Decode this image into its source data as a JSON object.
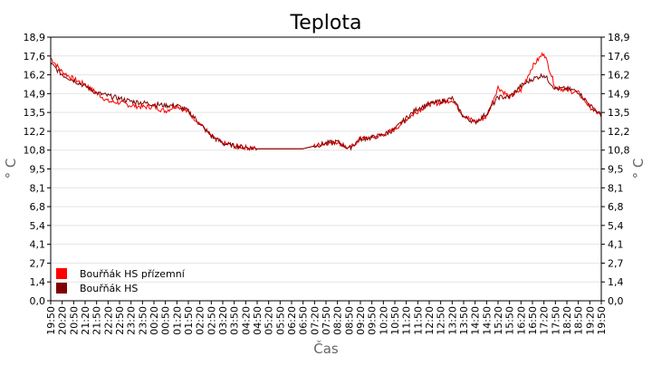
{
  "chart_data": {
    "type": "line",
    "title": "Teplota",
    "xlabel": "Čas",
    "ylabel": "° C",
    "ylim": [
      0,
      18.9
    ],
    "y_ticks": [
      "0,0",
      "1,4",
      "2,7",
      "4,1",
      "5,4",
      "6,8",
      "8,1",
      "9,5",
      "10,8",
      "12,2",
      "13,5",
      "14,9",
      "16,2",
      "17,6",
      "18,9"
    ],
    "y_tick_values": [
      0,
      1.35,
      2.7,
      4.05,
      5.4,
      6.75,
      8.1,
      9.45,
      10.8,
      12.15,
      13.5,
      14.85,
      16.2,
      17.55,
      18.9
    ],
    "x_ticks": [
      "19:50",
      "20:20",
      "20:50",
      "21:20",
      "21:50",
      "22:20",
      "22:50",
      "23:20",
      "23:50",
      "00:20",
      "00:50",
      "01:20",
      "01:50",
      "02:20",
      "02:50",
      "03:20",
      "03:50",
      "04:20",
      "04:50",
      "05:20",
      "05:50",
      "06:20",
      "06:50",
      "07:20",
      "07:50",
      "08:20",
      "08:50",
      "09:20",
      "09:50",
      "10:20",
      "10:50",
      "11:20",
      "11:50",
      "12:20",
      "12:50",
      "13:20",
      "13:50",
      "14:20",
      "14:50",
      "15:20",
      "15:50",
      "16:20",
      "16:50",
      "17:20",
      "17:50",
      "18:20",
      "18:50",
      "19:20",
      "19:50"
    ],
    "grid": true,
    "legend_position": "bottom-left",
    "series": [
      {
        "name": "Bouřňák HS přízemní",
        "color": "#ff0000",
        "x": [
          "19:50",
          "20:20",
          "20:50",
          "21:20",
          "21:50",
          "22:20",
          "22:50",
          "23:20",
          "23:50",
          "00:20",
          "00:50",
          "01:20",
          "01:50",
          "02:20",
          "02:50",
          "03:20",
          "03:50",
          "04:20",
          "04:50",
          "05:20",
          "05:50",
          "06:20",
          "06:50",
          "07:20",
          "07:50",
          "08:20",
          "08:50",
          "09:20",
          "09:50",
          "10:20",
          "10:50",
          "11:20",
          "11:50",
          "12:20",
          "12:50",
          "13:20",
          "13:50",
          "14:20",
          "14:50",
          "15:20",
          "15:50",
          "16:20",
          "16:50",
          "17:20",
          "17:50",
          "18:20",
          "18:50",
          "19:20",
          "19:50"
        ],
        "values": [
          17.4,
          16.4,
          15.9,
          15.5,
          14.9,
          14.3,
          14.2,
          14.0,
          13.9,
          13.9,
          13.6,
          14.0,
          13.5,
          12.7,
          11.8,
          11.3,
          11.1,
          11.0,
          10.9,
          10.9,
          10.9,
          10.9,
          10.9,
          11.1,
          11.3,
          11.4,
          10.9,
          11.6,
          11.7,
          11.9,
          12.3,
          13.0,
          13.6,
          14.1,
          14.2,
          14.4,
          13.3,
          12.8,
          13.2,
          15.3,
          14.6,
          15.1,
          16.8,
          17.8,
          15.3,
          15.1,
          14.9,
          13.9,
          13.3
        ]
      },
      {
        "name": "Bouřňák HS",
        "color": "#800000",
        "x": [
          "19:50",
          "20:20",
          "20:50",
          "21:20",
          "21:50",
          "22:20",
          "22:50",
          "23:20",
          "23:50",
          "00:20",
          "00:50",
          "01:20",
          "01:50",
          "02:20",
          "02:50",
          "03:20",
          "03:50",
          "04:20",
          "04:50",
          "05:20",
          "05:50",
          "06:20",
          "06:50",
          "07:20",
          "07:50",
          "08:20",
          "08:50",
          "09:20",
          "09:50",
          "10:20",
          "10:50",
          "11:20",
          "11:50",
          "12:20",
          "12:50",
          "13:20",
          "13:50",
          "14:20",
          "14:50",
          "15:20",
          "15:50",
          "16:20",
          "16:50",
          "17:20",
          "17:50",
          "18:20",
          "18:50",
          "19:20",
          "19:50"
        ],
        "values": [
          17.0,
          16.2,
          15.8,
          15.4,
          14.9,
          14.7,
          14.5,
          14.3,
          14.2,
          14.1,
          14.0,
          14.0,
          13.6,
          12.7,
          11.8,
          11.3,
          11.1,
          11.0,
          10.9,
          10.9,
          10.9,
          10.9,
          10.9,
          11.1,
          11.3,
          11.4,
          10.9,
          11.6,
          11.7,
          11.9,
          12.3,
          13.1,
          13.8,
          14.1,
          14.3,
          14.5,
          13.2,
          12.8,
          13.4,
          14.6,
          14.6,
          15.4,
          15.9,
          16.2,
          15.2,
          15.2,
          15.0,
          14.0,
          13.3
        ]
      }
    ]
  }
}
